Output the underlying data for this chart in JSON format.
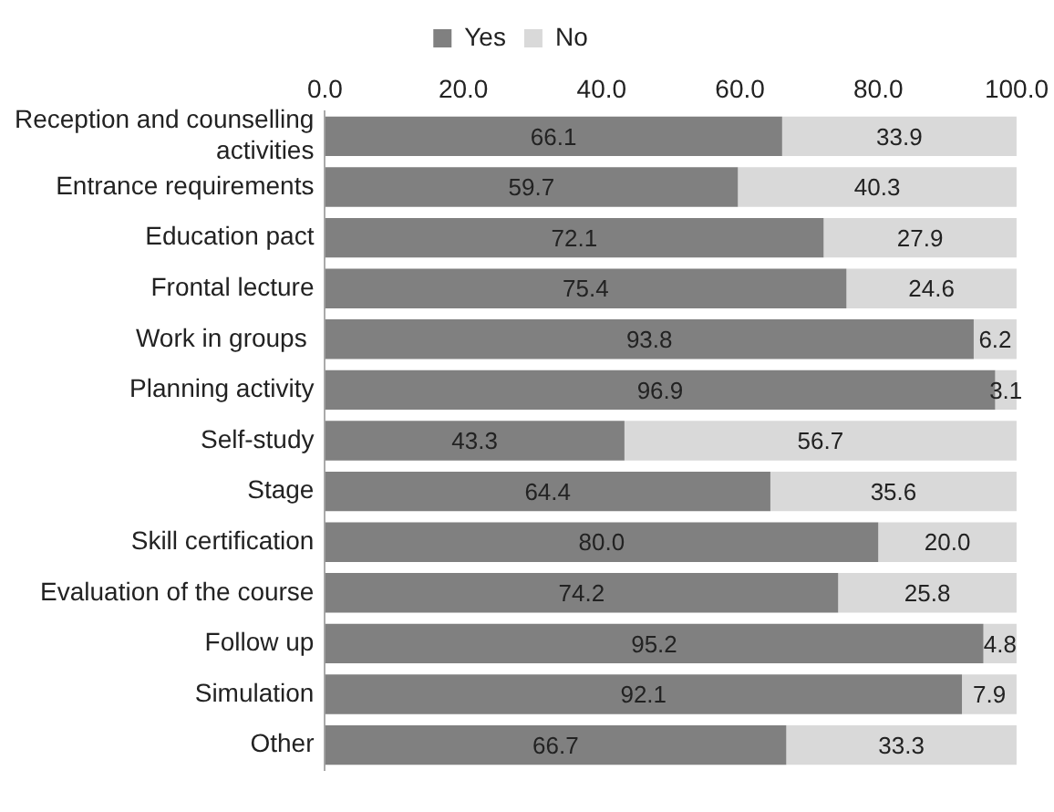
{
  "chart_data": {
    "type": "bar",
    "orientation": "horizontal",
    "stacked": true,
    "legend": "top",
    "categories": [
      "Reception and counselling activities",
      "Entrance requirements",
      "Education pact",
      "Frontal lecture",
      "Work in groups ",
      "Planning activity",
      "Self-study",
      "Stage",
      "Skill certification",
      "Evaluation of the course",
      "Follow up",
      "Simulation",
      "Other"
    ],
    "xlim": [
      0,
      100
    ],
    "xticks": [
      {
        "value": 0,
        "label": "0.0"
      },
      {
        "value": 20,
        "label": "20.0"
      },
      {
        "value": 40,
        "label": "40.0"
      },
      {
        "value": 60,
        "label": "60.0"
      },
      {
        "value": 80,
        "label": "80.0"
      },
      {
        "value": 100,
        "label": "100.0"
      }
    ],
    "series": [
      {
        "name": "Yes",
        "color": "#808080",
        "values": [
          66.1,
          59.7,
          72.1,
          75.4,
          93.8,
          96.9,
          43.3,
          64.4,
          80.0,
          74.2,
          95.2,
          92.1,
          66.7
        ],
        "value_labels": [
          "66.1",
          "59.7",
          "72.1",
          "75.4",
          "93.8",
          "96.9",
          "43.3",
          "64.4",
          "80.0",
          "74.2",
          "95.2",
          "92.1",
          "66.7"
        ]
      },
      {
        "name": "No",
        "color": "#d9d9d9",
        "values": [
          33.9,
          40.3,
          27.9,
          24.6,
          6.2,
          3.1,
          56.7,
          35.6,
          20.0,
          25.8,
          4.8,
          7.9,
          33.3
        ],
        "value_labels": [
          "33.9",
          "40.3",
          "27.9",
          "24.6",
          "6.2",
          "3.1",
          "56.7",
          "35.6",
          "20.0",
          "25.8",
          "4.8",
          "7.9",
          "33.3"
        ]
      }
    ]
  }
}
